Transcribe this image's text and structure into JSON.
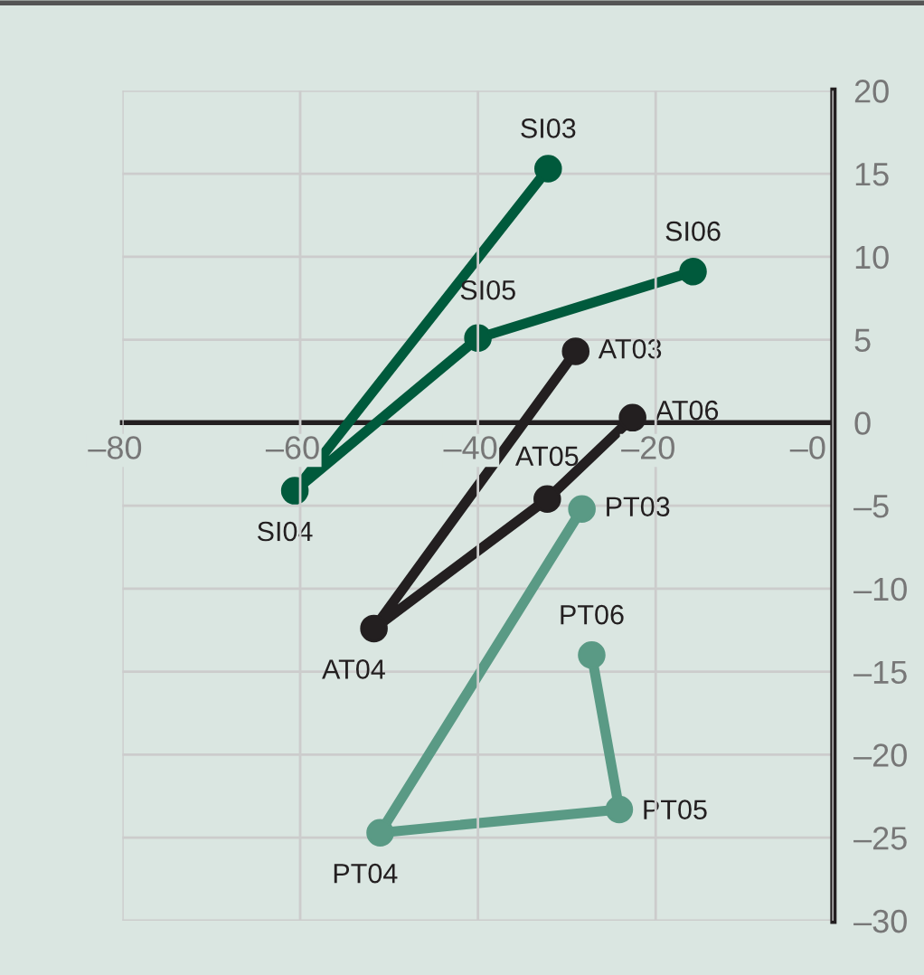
{
  "chart_data": {
    "type": "line",
    "marker": "circle",
    "line_style": "solid",
    "grid": true,
    "legend": false,
    "xlim": [
      -80,
      0
    ],
    "ylim": [
      -30,
      20
    ],
    "xticks": [
      {
        "value": -80,
        "label": "–80"
      },
      {
        "value": -60,
        "label": "–60"
      },
      {
        "value": -40,
        "label": "–40"
      },
      {
        "value": -20,
        "label": "–20"
      },
      {
        "value": 0,
        "label": "–0"
      }
    ],
    "yticks": [
      {
        "value": -30,
        "label": "–30"
      },
      {
        "value": -25,
        "label": "–25"
      },
      {
        "value": -20,
        "label": "–20"
      },
      {
        "value": -15,
        "label": "–15"
      },
      {
        "value": -10,
        "label": "–10"
      },
      {
        "value": -5,
        "label": "–5"
      },
      0,
      5,
      10,
      15,
      20
    ],
    "series": [
      {
        "color": "#005a3c",
        "x": [
          -32.1,
          -60.6,
          -40.0,
          -15.8
        ],
        "values": [
          15.3,
          -4.1,
          5.1,
          9.1
        ]
      },
      {
        "color": "#231f20",
        "x": [
          -29.0,
          -51.7,
          -32.2,
          -22.6
        ],
        "values": [
          4.3,
          -12.4,
          -4.6,
          0.3
        ]
      },
      {
        "color": "#5a9a85",
        "x": [
          -28.3,
          -51.0,
          -24.1,
          -27.2
        ],
        "values": [
          -5.2,
          -24.7,
          -23.3,
          -14.0
        ]
      }
    ],
    "annotations": [
      {
        "text": "SI03",
        "x": -32.1,
        "y": 15.3
      },
      {
        "text": "SI04",
        "x": -60.6,
        "y": -4.1
      },
      {
        "text": "SI05",
        "x": -40.0,
        "y": 5.1
      },
      {
        "text": "SI06",
        "x": -15.8,
        "y": 9.1
      },
      {
        "text": "AT03",
        "x": -29.0,
        "y": 4.3
      },
      {
        "text": "AT04",
        "x": -51.7,
        "y": -12.4
      },
      {
        "text": "AT05",
        "x": -32.2,
        "y": -4.6
      },
      {
        "text": "AT06",
        "x": -22.6,
        "y": 0.3
      },
      {
        "text": "PT03",
        "x": -28.3,
        "y": -5.2
      },
      {
        "text": "PT04",
        "x": -51.0,
        "y": -24.7
      },
      {
        "text": "PT05",
        "x": -24.1,
        "y": -23.3
      },
      {
        "text": "PT06",
        "x": -27.2,
        "y": -14.0
      }
    ]
  }
}
